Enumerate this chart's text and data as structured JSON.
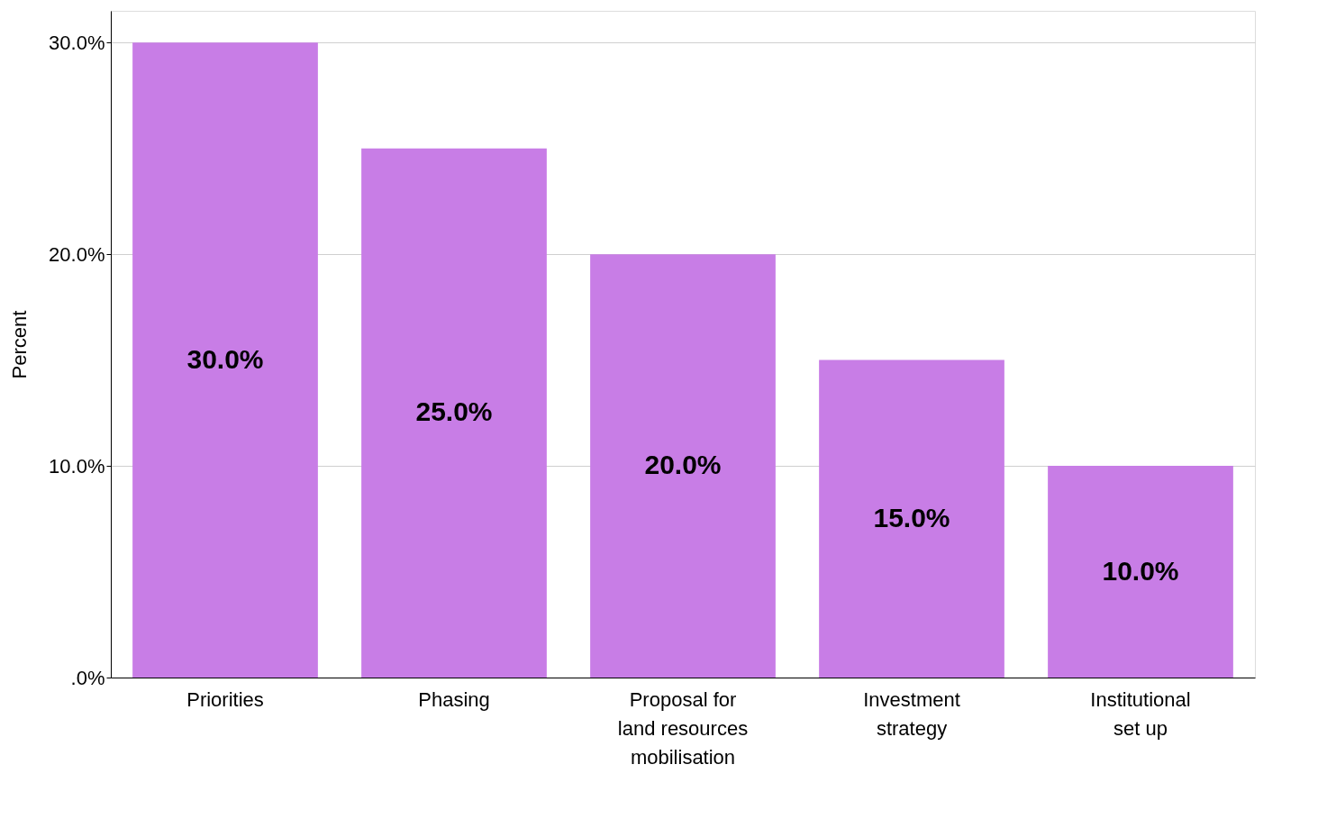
{
  "chart_data": {
    "type": "bar",
    "ylabel": "Percent",
    "categories": [
      "Priorities",
      "Phasing",
      "Proposal for land resources mobilisation",
      "Investment strategy",
      "Institutional set up"
    ],
    "values": [
      30.0,
      25.0,
      20.0,
      15.0,
      10.0
    ],
    "value_labels": [
      "30.0%",
      "25.0%",
      "20.0%",
      "15.0%",
      "10.0%"
    ],
    "color": "#c87de6",
    "ylim": [
      0,
      31.5
    ],
    "yticks": [
      {
        "value": 0,
        "label": ".0%"
      },
      {
        "value": 10,
        "label": "10.0%"
      },
      {
        "value": 20,
        "label": "20.0%"
      },
      {
        "value": 30,
        "label": "30.0%"
      }
    ],
    "grid": "y",
    "legend": false
  }
}
